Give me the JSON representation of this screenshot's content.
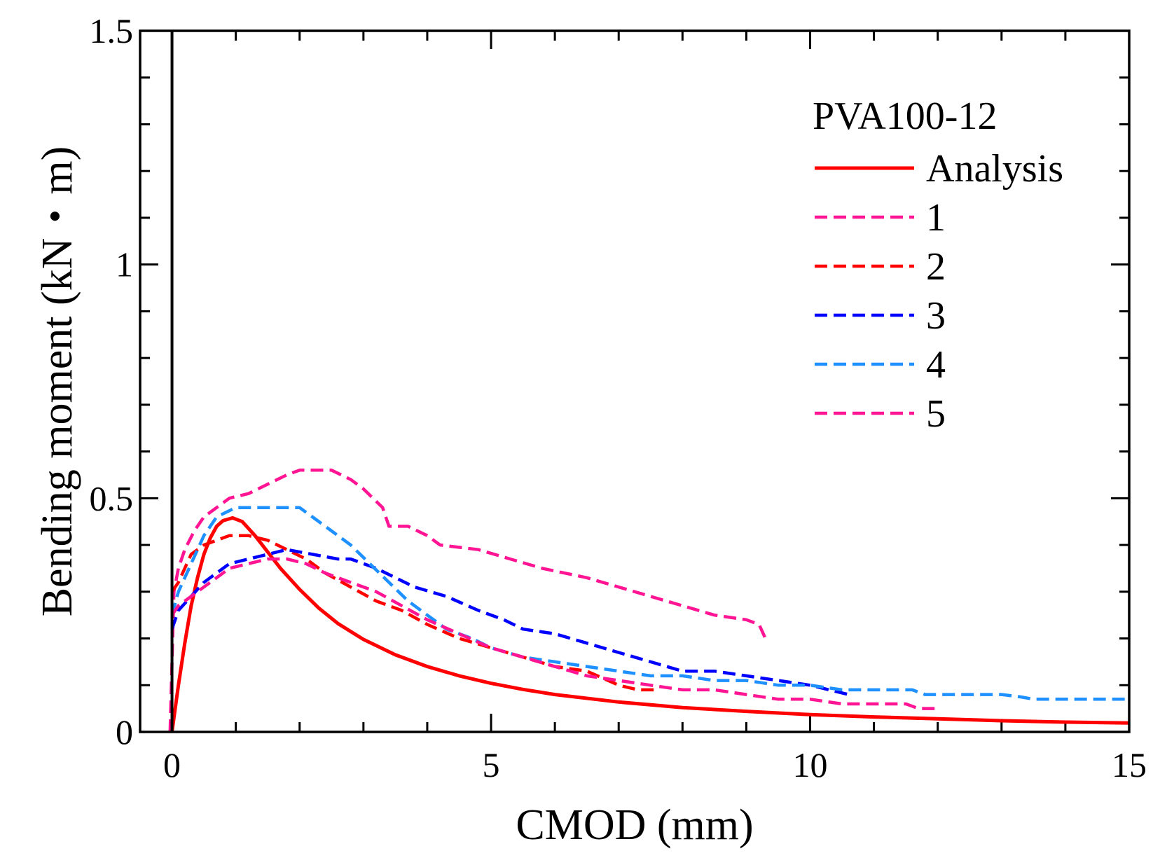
{
  "chart_data": {
    "type": "line",
    "title": "",
    "xlabel": "CMOD (mm)",
    "ylabel": "Bending moment (kN・m)",
    "xlim": [
      -0.5,
      15
    ],
    "ylim": [
      0,
      1.5
    ],
    "xticks": [
      0,
      5,
      10,
      15
    ],
    "xtick_labels": [
      "0",
      "5",
      "10",
      "15"
    ],
    "yticks": [
      0,
      0.5,
      1,
      1.5
    ],
    "ytick_labels": [
      "0",
      "0.5",
      "1",
      "1.5"
    ],
    "grid": false,
    "legend": {
      "title": "PVA100-12",
      "position": "top-right"
    },
    "series": [
      {
        "name": "Analysis",
        "color": "#ff0000",
        "style": "solid",
        "points": [
          [
            0,
            0
          ],
          [
            0.1,
            0.1
          ],
          [
            0.2,
            0.19
          ],
          [
            0.3,
            0.27
          ],
          [
            0.4,
            0.33
          ],
          [
            0.5,
            0.38
          ],
          [
            0.6,
            0.415
          ],
          [
            0.7,
            0.44
          ],
          [
            0.8,
            0.452
          ],
          [
            0.95,
            0.458
          ],
          [
            1.1,
            0.45
          ],
          [
            1.3,
            0.42
          ],
          [
            1.5,
            0.385
          ],
          [
            1.7,
            0.35
          ],
          [
            2.0,
            0.305
          ],
          [
            2.3,
            0.265
          ],
          [
            2.6,
            0.232
          ],
          [
            3.0,
            0.198
          ],
          [
            3.5,
            0.165
          ],
          [
            4.0,
            0.14
          ],
          [
            4.5,
            0.12
          ],
          [
            5.0,
            0.104
          ],
          [
            5.5,
            0.091
          ],
          [
            6.0,
            0.08
          ],
          [
            7.0,
            0.064
          ],
          [
            8.0,
            0.052
          ],
          [
            9.0,
            0.044
          ],
          [
            10.0,
            0.037
          ],
          [
            11.0,
            0.032
          ],
          [
            12.0,
            0.028
          ],
          [
            13.0,
            0.024
          ],
          [
            14.0,
            0.021
          ],
          [
            15.0,
            0.019
          ]
        ]
      },
      {
        "name": "1",
        "color": "#ff1493",
        "style": "dashed",
        "points": [
          [
            -0.03,
            0
          ],
          [
            0.03,
            0.3
          ],
          [
            0.1,
            0.35
          ],
          [
            0.2,
            0.39
          ],
          [
            0.35,
            0.43
          ],
          [
            0.5,
            0.46
          ],
          [
            0.7,
            0.48
          ],
          [
            0.9,
            0.5
          ],
          [
            1.2,
            0.51
          ],
          [
            1.5,
            0.53
          ],
          [
            1.8,
            0.55
          ],
          [
            2.0,
            0.56
          ],
          [
            2.5,
            0.56
          ],
          [
            2.8,
            0.54
          ],
          [
            3.0,
            0.52
          ],
          [
            3.3,
            0.48
          ],
          [
            3.4,
            0.44
          ],
          [
            3.7,
            0.44
          ],
          [
            4.0,
            0.42
          ],
          [
            4.2,
            0.4
          ],
          [
            4.8,
            0.39
          ],
          [
            5.3,
            0.37
          ],
          [
            5.8,
            0.35
          ],
          [
            6.5,
            0.33
          ],
          [
            7.0,
            0.31
          ],
          [
            7.5,
            0.29
          ],
          [
            8.0,
            0.27
          ],
          [
            8.5,
            0.25
          ],
          [
            9.0,
            0.24
          ],
          [
            9.2,
            0.23
          ],
          [
            9.3,
            0.2
          ]
        ]
      },
      {
        "name": "2",
        "color": "#ff0000",
        "style": "dashed",
        "points": [
          [
            0.0,
            0.3
          ],
          [
            0.1,
            0.32
          ],
          [
            0.2,
            0.35
          ],
          [
            0.3,
            0.38
          ],
          [
            0.5,
            0.4
          ],
          [
            0.7,
            0.41
          ],
          [
            0.9,
            0.42
          ],
          [
            1.2,
            0.42
          ],
          [
            1.5,
            0.41
          ],
          [
            1.8,
            0.39
          ],
          [
            2.1,
            0.37
          ],
          [
            2.4,
            0.34
          ],
          [
            2.8,
            0.31
          ],
          [
            3.2,
            0.28
          ],
          [
            3.6,
            0.26
          ],
          [
            4.0,
            0.23
          ],
          [
            4.5,
            0.2
          ],
          [
            5.0,
            0.18
          ],
          [
            5.5,
            0.16
          ],
          [
            6.0,
            0.14
          ],
          [
            6.5,
            0.13
          ],
          [
            7.0,
            0.1
          ],
          [
            7.3,
            0.09
          ],
          [
            7.6,
            0.09
          ]
        ]
      },
      {
        "name": "3",
        "color": "#0000ff",
        "style": "dashed",
        "points": [
          [
            0.0,
            0.22
          ],
          [
            0.1,
            0.26
          ],
          [
            0.3,
            0.29
          ],
          [
            0.5,
            0.32
          ],
          [
            0.7,
            0.34
          ],
          [
            0.9,
            0.36
          ],
          [
            1.2,
            0.37
          ],
          [
            1.5,
            0.38
          ],
          [
            1.8,
            0.39
          ],
          [
            2.2,
            0.38
          ],
          [
            2.6,
            0.37
          ],
          [
            2.8,
            0.37
          ],
          [
            3.2,
            0.35
          ],
          [
            3.5,
            0.33
          ],
          [
            3.8,
            0.31
          ],
          [
            4.3,
            0.29
          ],
          [
            4.8,
            0.26
          ],
          [
            5.2,
            0.24
          ],
          [
            5.5,
            0.22
          ],
          [
            6.0,
            0.21
          ],
          [
            6.5,
            0.19
          ],
          [
            7.0,
            0.17
          ],
          [
            7.5,
            0.15
          ],
          [
            8.0,
            0.13
          ],
          [
            8.5,
            0.13
          ],
          [
            9.0,
            0.12
          ],
          [
            9.5,
            0.11
          ],
          [
            10.0,
            0.1
          ],
          [
            10.3,
            0.09
          ],
          [
            10.6,
            0.08
          ]
        ]
      },
      {
        "name": "4",
        "color": "#1e90ff",
        "style": "dashed",
        "points": [
          [
            0.0,
            0.25
          ],
          [
            0.1,
            0.3
          ],
          [
            0.3,
            0.36
          ],
          [
            0.5,
            0.42
          ],
          [
            0.7,
            0.46
          ],
          [
            1.0,
            0.48
          ],
          [
            1.5,
            0.48
          ],
          [
            2.0,
            0.48
          ],
          [
            2.2,
            0.46
          ],
          [
            2.5,
            0.43
          ],
          [
            2.8,
            0.4
          ],
          [
            3.1,
            0.36
          ],
          [
            3.4,
            0.32
          ],
          [
            3.7,
            0.28
          ],
          [
            4.0,
            0.25
          ],
          [
            4.3,
            0.22
          ],
          [
            4.7,
            0.2
          ],
          [
            5.0,
            0.18
          ],
          [
            5.5,
            0.16
          ],
          [
            6.0,
            0.15
          ],
          [
            6.5,
            0.14
          ],
          [
            7.0,
            0.13
          ],
          [
            7.5,
            0.12
          ],
          [
            8.0,
            0.12
          ],
          [
            8.5,
            0.11
          ],
          [
            9.0,
            0.11
          ],
          [
            9.5,
            0.1
          ],
          [
            10.0,
            0.1
          ],
          [
            10.5,
            0.09
          ],
          [
            11.0,
            0.09
          ],
          [
            11.6,
            0.09
          ],
          [
            11.8,
            0.08
          ],
          [
            12.5,
            0.08
          ],
          [
            13.0,
            0.08
          ],
          [
            13.3,
            0.075
          ],
          [
            13.5,
            0.07
          ],
          [
            14.0,
            0.07
          ],
          [
            15.0,
            0.07
          ]
        ]
      },
      {
        "name": "5",
        "color": "#ff1493",
        "style": "dashed",
        "points": [
          [
            0.0,
            0.25
          ],
          [
            0.1,
            0.27
          ],
          [
            0.3,
            0.29
          ],
          [
            0.5,
            0.31
          ],
          [
            0.7,
            0.33
          ],
          [
            0.9,
            0.35
          ],
          [
            1.2,
            0.36
          ],
          [
            1.5,
            0.37
          ],
          [
            1.8,
            0.37
          ],
          [
            2.1,
            0.36
          ],
          [
            2.4,
            0.34
          ],
          [
            2.8,
            0.32
          ],
          [
            3.2,
            0.3
          ],
          [
            3.6,
            0.27
          ],
          [
            4.0,
            0.24
          ],
          [
            4.5,
            0.21
          ],
          [
            5.0,
            0.18
          ],
          [
            5.5,
            0.16
          ],
          [
            6.0,
            0.14
          ],
          [
            6.5,
            0.12
          ],
          [
            7.0,
            0.11
          ],
          [
            7.5,
            0.1
          ],
          [
            8.0,
            0.09
          ],
          [
            8.5,
            0.09
          ],
          [
            9.0,
            0.08
          ],
          [
            9.5,
            0.07
          ],
          [
            10.0,
            0.07
          ],
          [
            10.5,
            0.06
          ],
          [
            11.0,
            0.06
          ],
          [
            11.5,
            0.06
          ],
          [
            11.7,
            0.05
          ],
          [
            12.0,
            0.05
          ]
        ]
      }
    ]
  }
}
